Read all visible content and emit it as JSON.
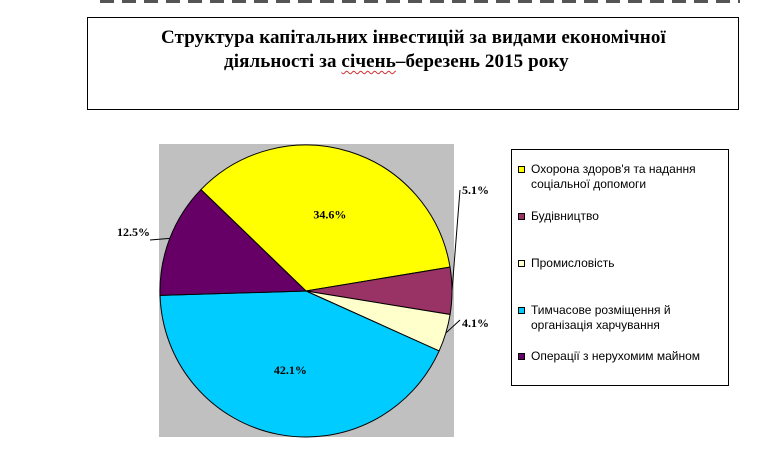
{
  "title": {
    "line1": "Структура капітальних інвестицій за видами економічної",
    "line2_prefix": "діяльності за ",
    "line2_underlined": "січень",
    "line2_suffix": "–березень 2015 року"
  },
  "colors": {
    "plot_background": "#c0c0c0",
    "health": "#ffff00",
    "construction": "#993366",
    "industry": "#ffffcc",
    "accommodation": "#00ccff",
    "real_estate": "#660066"
  },
  "chart_data": {
    "type": "pie",
    "title": "Структура капітальних інвестицій за видами економічної діяльності за січень–березень 2015 року",
    "legend_position": "right",
    "slices": [
      {
        "label": "Охорона здоров'я та надання соціальної допомоги",
        "value": 34.6,
        "display": "34.6%",
        "color": "#ffff00"
      },
      {
        "label": "Будівництво",
        "value": 5.1,
        "display": "5.1%",
        "color": "#993366"
      },
      {
        "label": "Промисловість",
        "value": 4.1,
        "display": "4.1%",
        "color": "#ffffcc"
      },
      {
        "label": "Тимчасове розміщення й організація харчування",
        "value": 42.1,
        "display": "42.1%",
        "color": "#00ccff"
      },
      {
        "label": "Операції з нерухомим майном",
        "value": 12.5,
        "display": "12.5%",
        "color": "#660066"
      }
    ]
  }
}
